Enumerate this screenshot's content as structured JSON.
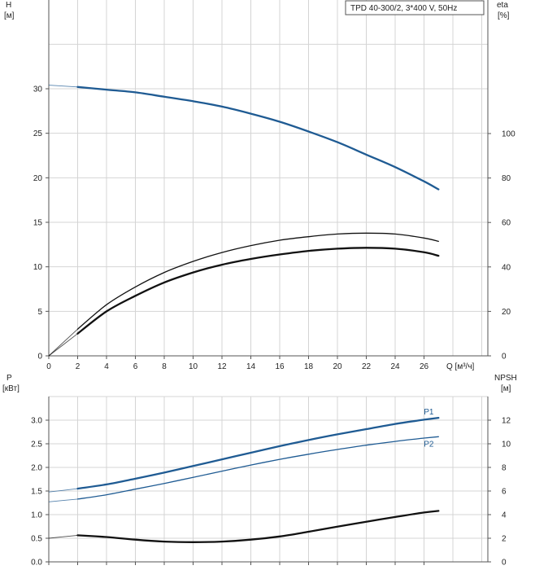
{
  "chart_data": [
    {
      "type": "line",
      "title": "TPD 40-300/2, 3*400 V, 50Hz",
      "ylabel": "H",
      "ylabel_unit": "[м]",
      "y2label": "eta",
      "y2label_unit": "[%]",
      "xlabel": "Q [м³/ч]",
      "xlim": [
        0,
        30.5
      ],
      "ylim": [
        0,
        37
      ],
      "y2lim": [
        0,
        148
      ],
      "grid": true,
      "x_ticks": [
        0,
        2,
        4,
        6,
        8,
        10,
        12,
        14,
        16,
        18,
        20,
        22,
        24,
        26
      ],
      "y_ticks": [
        0,
        5,
        10,
        15,
        20,
        25,
        30
      ],
      "y2_ticks": [
        0,
        20,
        40,
        60,
        80,
        100
      ],
      "series": [
        {
          "axis": "left",
          "color": "#1f5b93",
          "width": 2.3,
          "extension": {
            "x": [
              0,
              2
            ],
            "y": [
              30.4,
              30.2
            ]
          },
          "x": [
            2,
            4,
            6,
            8,
            10,
            12,
            14,
            16,
            18,
            20,
            22,
            24,
            26,
            27
          ],
          "y": [
            30.2,
            29.9,
            29.6,
            29.1,
            28.6,
            28.0,
            27.2,
            26.3,
            25.2,
            24.0,
            22.6,
            21.2,
            19.6,
            18.7
          ]
        },
        {
          "axis": "right",
          "color": "#111111",
          "width": 2.3,
          "extension": {
            "x": [
              0,
              2
            ],
            "y": [
              0,
              10
            ]
          },
          "x": [
            2,
            4,
            6,
            8,
            10,
            12,
            14,
            16,
            18,
            20,
            22,
            24,
            26,
            27
          ],
          "y": [
            10,
            20,
            27,
            33,
            37.5,
            41,
            43.6,
            45.6,
            47.2,
            48.2,
            48.6,
            48.2,
            46.6,
            45
          ]
        },
        {
          "axis": "right",
          "color": "#111111",
          "width": 1.3,
          "extension": {
            "x": [
              0,
              2
            ],
            "y": [
              0,
              12
            ]
          },
          "x": [
            2,
            4,
            6,
            8,
            10,
            12,
            14,
            16,
            18,
            20,
            22,
            24,
            26,
            27
          ],
          "y": [
            12,
            23,
            31,
            37.5,
            42.5,
            46.5,
            49.6,
            52,
            53.6,
            54.8,
            55.2,
            54.8,
            53,
            51.5
          ]
        }
      ]
    },
    {
      "type": "line",
      "ylabel": "P",
      "ylabel_unit": "[кВт]",
      "y2label": "NPSH",
      "y2label_unit": "[м]",
      "xlim": [
        0,
        30.5
      ],
      "ylim": [
        0,
        3.5
      ],
      "y2lim": [
        0,
        14
      ],
      "grid": true,
      "y_ticks": [
        0.0,
        0.5,
        1.0,
        1.5,
        2.0,
        2.5,
        3.0
      ],
      "y_tick_labels": [
        "0.0",
        "0.5",
        "1.0",
        "1.5",
        "2.0",
        "2.5",
        "3.0"
      ],
      "y2_ticks": [
        0,
        2,
        4,
        6,
        8,
        10,
        12
      ],
      "series": [
        {
          "name": "P1",
          "axis": "left",
          "color": "#1f5b93",
          "width": 2.3,
          "extension": {
            "x": [
              0,
              2
            ],
            "y": [
              1.48,
              1.55
            ]
          },
          "x": [
            2,
            4,
            6,
            8,
            10,
            12,
            14,
            16,
            18,
            20,
            22,
            24,
            26,
            27
          ],
          "y": [
            1.55,
            1.64,
            1.76,
            1.89,
            2.03,
            2.17,
            2.31,
            2.45,
            2.58,
            2.7,
            2.81,
            2.92,
            3.01,
            3.05
          ]
        },
        {
          "name": "P2",
          "axis": "left",
          "color": "#1f5b93",
          "width": 1.3,
          "extension": {
            "x": [
              0,
              2
            ],
            "y": [
              1.27,
              1.33
            ]
          },
          "x": [
            2,
            4,
            6,
            8,
            10,
            12,
            14,
            16,
            18,
            20,
            22,
            24,
            26,
            27
          ],
          "y": [
            1.33,
            1.42,
            1.54,
            1.66,
            1.79,
            1.92,
            2.05,
            2.17,
            2.28,
            2.38,
            2.47,
            2.55,
            2.62,
            2.65
          ]
        },
        {
          "axis": "right",
          "color": "#111111",
          "width": 2.3,
          "extension": {
            "x": [
              0,
              2
            ],
            "y": [
              2.0,
              2.25
            ]
          },
          "x": [
            2,
            4,
            6,
            8,
            10,
            12,
            14,
            16,
            18,
            20,
            22,
            24,
            26,
            27
          ],
          "y": [
            2.25,
            2.1,
            1.88,
            1.72,
            1.67,
            1.72,
            1.88,
            2.15,
            2.55,
            2.98,
            3.4,
            3.8,
            4.18,
            4.32
          ]
        }
      ]
    }
  ]
}
